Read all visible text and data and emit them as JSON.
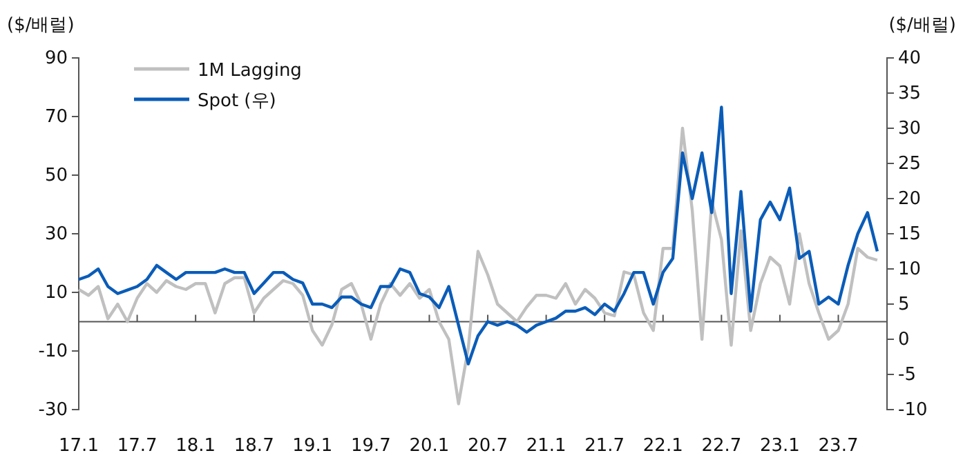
{
  "chart_data": {
    "type": "line",
    "ylabel": "($/배럴)",
    "y2label": "($/배럴)",
    "categories": [
      "17.1",
      null,
      null,
      null,
      null,
      null,
      "17.7",
      null,
      null,
      null,
      null,
      null,
      "18.1",
      null,
      null,
      null,
      null,
      null,
      "18.7",
      null,
      null,
      null,
      null,
      null,
      "19.1",
      null,
      null,
      null,
      null,
      null,
      "19.7",
      null,
      null,
      null,
      null,
      null,
      "20.1",
      null,
      null,
      null,
      null,
      null,
      "20.7",
      null,
      null,
      null,
      null,
      null,
      "21.1",
      null,
      null,
      null,
      null,
      null,
      "21.7",
      null,
      null,
      null,
      null,
      null,
      "22.1",
      null,
      null,
      null,
      null,
      null,
      "22.7",
      null,
      null,
      null,
      null,
      null,
      "23.1",
      null,
      null,
      null,
      null,
      null,
      "23.7",
      null,
      null,
      null,
      null,
      null
    ],
    "series": [
      {
        "name": "1M Lagging",
        "color": "#c0c0c0",
        "values": [
          11,
          9,
          12,
          1,
          6,
          0,
          8,
          13,
          10,
          14,
          12,
          11,
          13,
          13,
          3,
          13,
          15,
          15,
          3,
          8,
          11,
          14,
          13,
          9,
          -3,
          -8,
          -1,
          11,
          13,
          6,
          -6,
          6,
          13,
          9,
          13,
          8,
          11,
          0,
          -6,
          -28,
          -9,
          24,
          16,
          6,
          3,
          0,
          5,
          9,
          9,
          8,
          13,
          6,
          11,
          8,
          3,
          2,
          17,
          16,
          3,
          -3,
          25,
          25,
          66,
          38,
          -6,
          41,
          28,
          -8,
          31,
          -3,
          13,
          22,
          19,
          6,
          30,
          13,
          3,
          -6,
          -3,
          6,
          25,
          22,
          21,
          null
        ]
      },
      {
        "name": "Spot (우)",
        "color": "#0a5cb8",
        "axis": "y2",
        "values": [
          8.5,
          9,
          10,
          7.5,
          6.5,
          7,
          7.5,
          8.5,
          10.5,
          9.5,
          8.5,
          9.5,
          9.5,
          9.5,
          9.5,
          10,
          9.5,
          9.5,
          6.5,
          8,
          9.5,
          9.5,
          8.5,
          8,
          5,
          5,
          4.5,
          6,
          6,
          5,
          4.5,
          7.5,
          7.5,
          10,
          9.5,
          6.5,
          6,
          4.5,
          7.5,
          2,
          -3.5,
          0.5,
          2.5,
          2,
          2.5,
          2,
          1,
          2,
          2.5,
          3,
          4,
          4,
          4.5,
          3.5,
          5,
          4,
          6.5,
          9.5,
          9.5,
          5,
          9.5,
          11.5,
          26.5,
          20,
          26.5,
          18,
          33,
          6.5,
          21,
          4,
          17,
          19.5,
          17,
          21.5,
          11.5,
          12.5,
          5,
          6,
          5,
          10.5,
          15,
          18,
          12.5,
          null
        ]
      }
    ],
    "ylim": [
      -30,
      90
    ],
    "yticks": [
      -30,
      -10,
      10,
      30,
      50,
      70,
      90
    ],
    "y2lim": [
      -10,
      40
    ],
    "y2ticks": [
      -10,
      -5,
      0,
      5,
      10,
      15,
      20,
      25,
      30,
      35,
      40
    ],
    "legend": "top left",
    "grid": false,
    "marker": "none",
    "line_style": "solid"
  }
}
